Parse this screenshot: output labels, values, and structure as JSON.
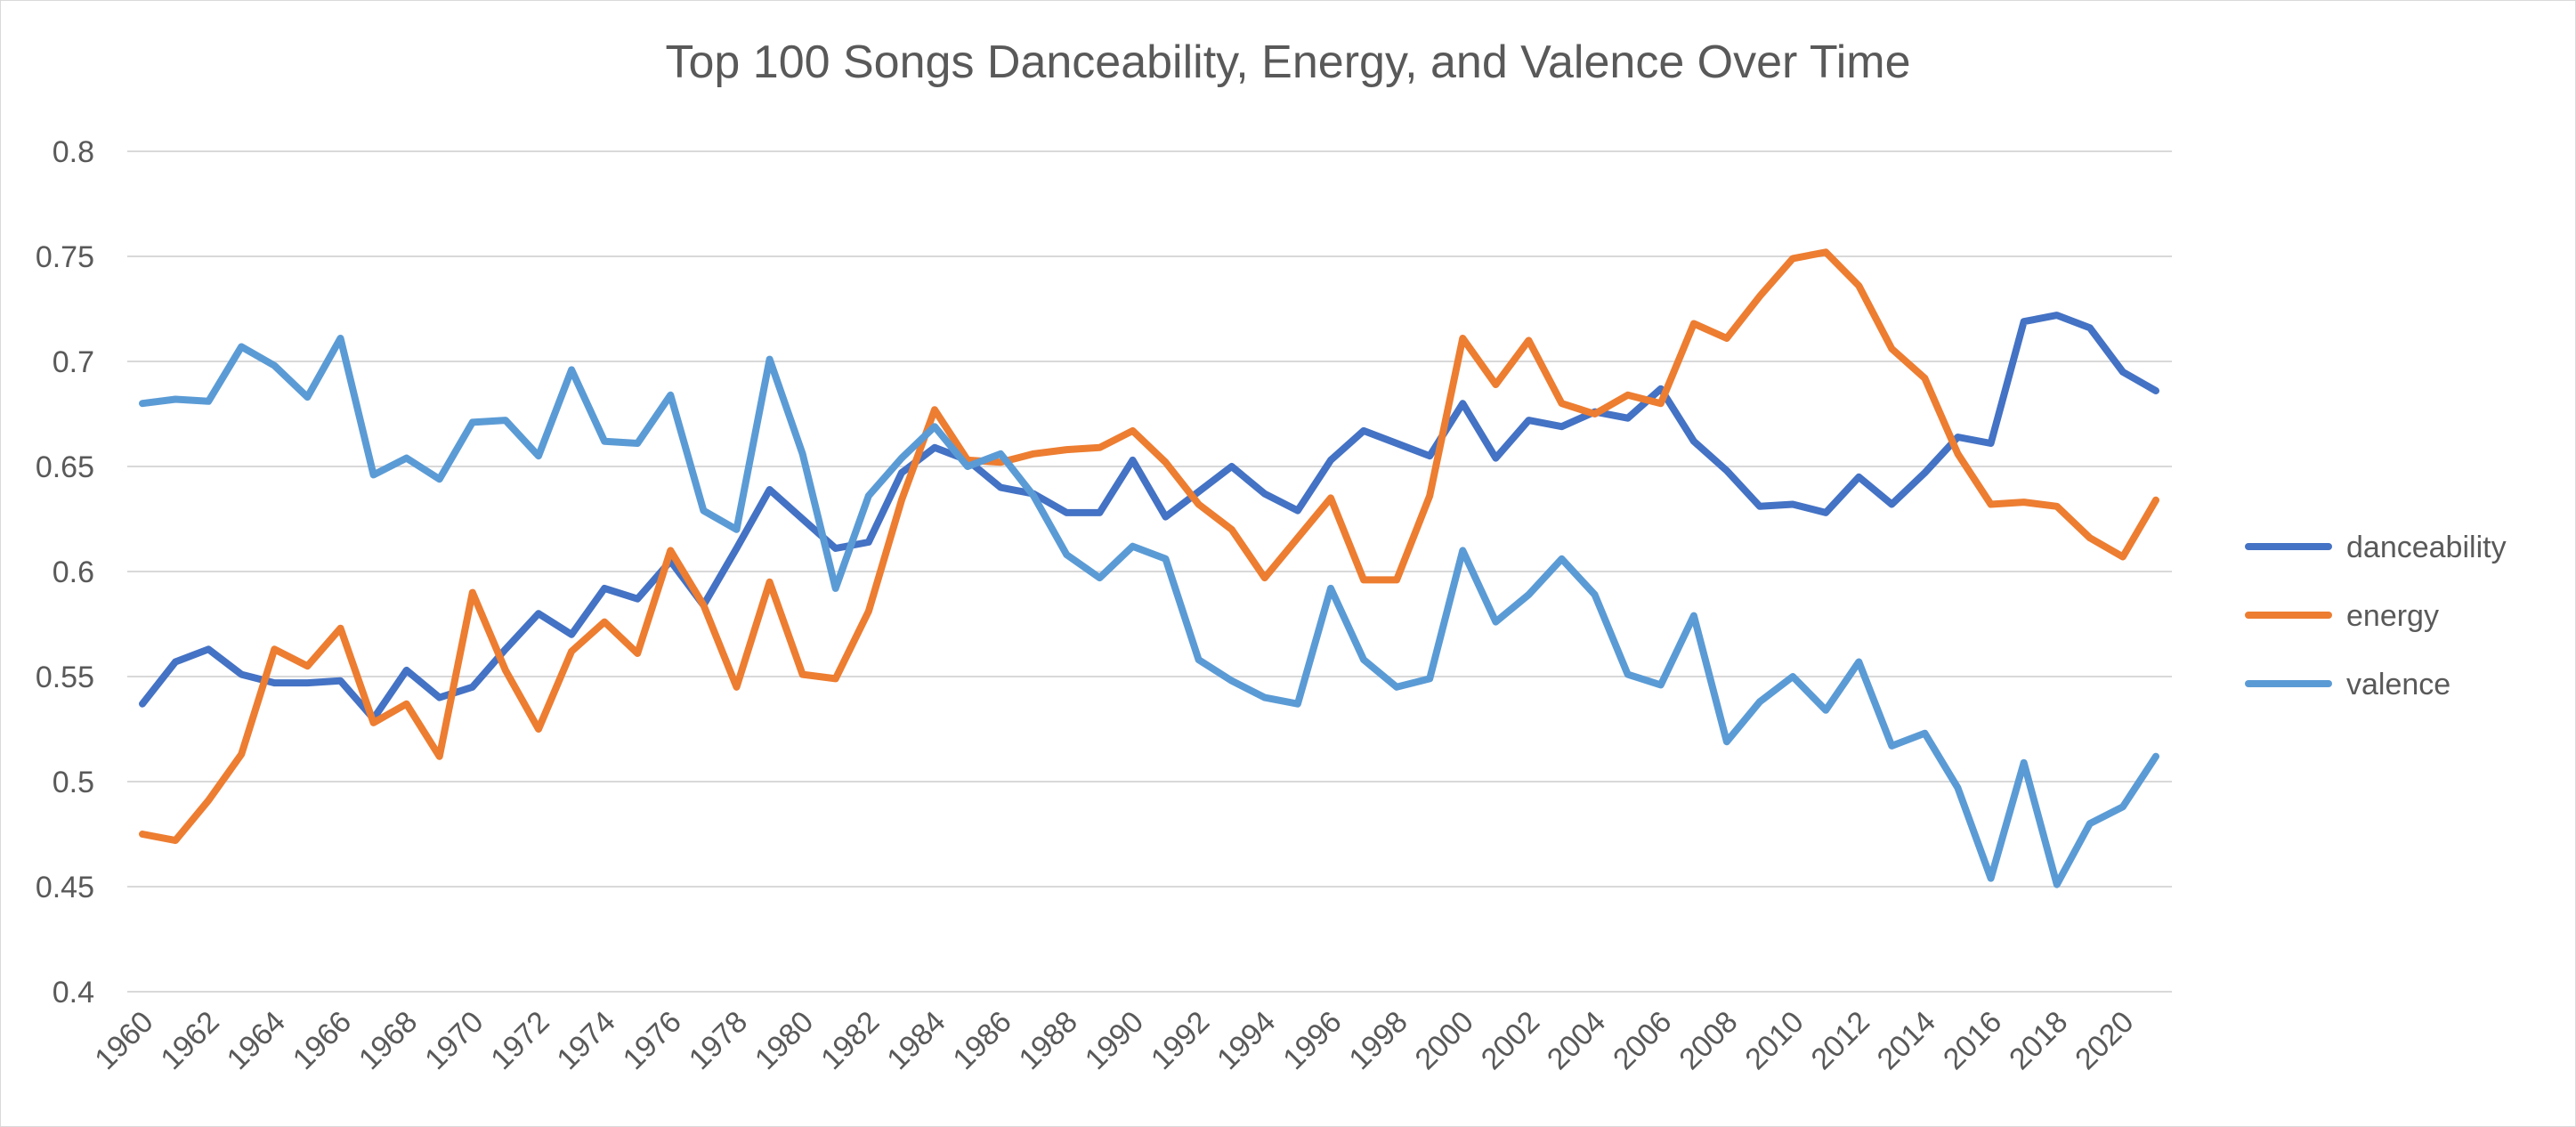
{
  "chart_data": {
    "type": "line",
    "title": "Top 100 Songs Danceability, Energy, and Valence Over Time",
    "xlabel": "",
    "ylabel": "",
    "ylim": [
      0.4,
      0.8
    ],
    "y_ticks": [
      "0.4",
      "0.45",
      "0.5",
      "0.55",
      "0.6",
      "0.65",
      "0.7",
      "0.75",
      "0.8"
    ],
    "y_tick_values": [
      0.4,
      0.45,
      0.5,
      0.55,
      0.6,
      0.65,
      0.7,
      0.75,
      0.8
    ],
    "x": [
      1960,
      1961,
      1962,
      1963,
      1964,
      1965,
      1966,
      1967,
      1968,
      1969,
      1970,
      1971,
      1972,
      1973,
      1974,
      1975,
      1976,
      1977,
      1978,
      1979,
      1980,
      1981,
      1982,
      1983,
      1984,
      1985,
      1986,
      1987,
      1988,
      1989,
      1990,
      1991,
      1992,
      1993,
      1994,
      1995,
      1996,
      1997,
      1998,
      1999,
      2000,
      2001,
      2002,
      2003,
      2004,
      2005,
      2006,
      2007,
      2008,
      2009,
      2010,
      2011,
      2012,
      2013,
      2014,
      2015,
      2016,
      2017,
      2018,
      2019,
      2020,
      2021
    ],
    "x_tick_labels": [
      "1960",
      "1962",
      "1964",
      "1966",
      "1968",
      "1970",
      "1972",
      "1974",
      "1976",
      "1978",
      "1980",
      "1982",
      "1984",
      "1986",
      "1988",
      "1990",
      "1992",
      "1994",
      "1996",
      "1998",
      "2000",
      "2002",
      "2004",
      "2006",
      "2008",
      "2010",
      "2012",
      "2014",
      "2016",
      "2018",
      "2020"
    ],
    "grid": true,
    "legend_position": "right",
    "series": [
      {
        "name": "danceability",
        "color": "#4472C4",
        "values": [
          0.537,
          0.557,
          0.563,
          0.551,
          0.547,
          0.547,
          0.548,
          0.53,
          0.553,
          0.54,
          0.545,
          0.563,
          0.58,
          0.57,
          0.592,
          0.587,
          0.605,
          0.584,
          0.611,
          0.639,
          0.625,
          0.611,
          0.614,
          0.647,
          0.659,
          0.653,
          0.64,
          0.637,
          0.628,
          0.628,
          0.653,
          0.626,
          0.638,
          0.65,
          0.637,
          0.629,
          0.653,
          0.667,
          0.661,
          0.655,
          0.68,
          0.654,
          0.672,
          0.669,
          0.676,
          0.673,
          0.687,
          0.662,
          0.648,
          0.631,
          0.632,
          0.628,
          0.645,
          0.632,
          0.647,
          0.664,
          0.661,
          0.719,
          0.722,
          0.716,
          0.695,
          0.686
        ]
      },
      {
        "name": "energy",
        "color": "#ED7D31",
        "values": [
          0.475,
          0.472,
          0.491,
          0.513,
          0.563,
          0.555,
          0.573,
          0.528,
          0.537,
          0.512,
          0.59,
          0.553,
          0.525,
          0.562,
          0.576,
          0.561,
          0.61,
          0.584,
          0.545,
          0.595,
          0.551,
          0.549,
          0.581,
          0.634,
          0.677,
          0.653,
          0.652,
          0.656,
          0.658,
          0.659,
          0.667,
          0.652,
          0.632,
          0.62,
          0.597,
          0.616,
          0.635,
          0.596,
          0.596,
          0.636,
          0.711,
          0.689,
          0.71,
          0.68,
          0.675,
          0.684,
          0.68,
          0.718,
          0.711,
          0.731,
          0.749,
          0.752,
          0.736,
          0.706,
          0.692,
          0.656,
          0.632,
          0.633,
          0.631,
          0.616,
          0.607,
          0.634
        ]
      },
      {
        "name": "valence",
        "color": "#5B9BD5",
        "values": [
          0.68,
          0.682,
          0.681,
          0.707,
          0.698,
          0.683,
          0.711,
          0.646,
          0.654,
          0.644,
          0.671,
          0.672,
          0.655,
          0.696,
          0.662,
          0.661,
          0.684,
          0.629,
          0.62,
          0.701,
          0.656,
          0.592,
          0.636,
          0.654,
          0.669,
          0.65,
          0.656,
          0.636,
          0.608,
          0.597,
          0.612,
          0.606,
          0.558,
          0.548,
          0.54,
          0.537,
          0.592,
          0.558,
          0.545,
          0.549,
          0.61,
          0.576,
          0.589,
          0.606,
          0.589,
          0.551,
          0.546,
          0.579,
          0.519,
          0.538,
          0.55,
          0.534,
          0.557,
          0.517,
          0.523,
          0.497,
          0.454,
          0.509,
          0.451,
          0.48,
          0.488,
          0.512
        ]
      }
    ]
  }
}
